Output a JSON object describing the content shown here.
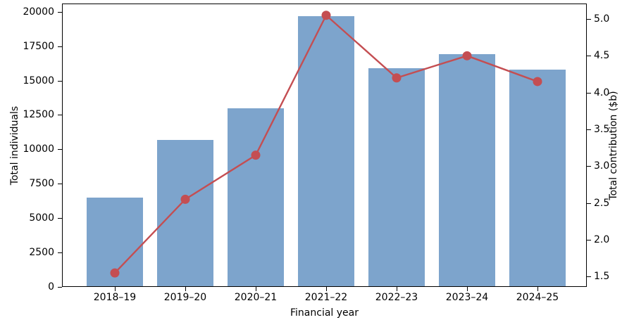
{
  "chart_data": {
    "type": "bar+line",
    "title": "",
    "xlabel": "Financial year",
    "ylabel_left": "Total individuals",
    "ylabel_right": "Total contribution ($b)",
    "categories": [
      "2018–19",
      "2019–20",
      "2020–21",
      "2021–22",
      "2022–23",
      "2023–24",
      "2024–25"
    ],
    "series": [
      {
        "name": "Total individuals",
        "type": "bar",
        "axis": "left",
        "color": "#7da4cc",
        "values": [
          6500,
          10700,
          13000,
          19700,
          15900,
          16900,
          15800
        ]
      },
      {
        "name": "Total contribution ($b)",
        "type": "line",
        "axis": "right",
        "color": "#c44e52",
        "values": [
          1.55,
          2.55,
          3.15,
          5.05,
          4.2,
          4.5,
          4.15
        ]
      }
    ],
    "left_axis": {
      "ticks": [
        0,
        2500,
        5000,
        7500,
        10000,
        12500,
        15000,
        17500,
        20000
      ],
      "range": [
        0,
        20600
      ]
    },
    "right_axis": {
      "ticks": [
        1.5,
        2.0,
        2.5,
        3.0,
        3.5,
        4.0,
        4.5,
        5.0
      ],
      "range": [
        1.36,
        5.21
      ]
    },
    "grid": false,
    "legend": "none",
    "background_color": "#ffffff",
    "axis_color": "#000000"
  }
}
